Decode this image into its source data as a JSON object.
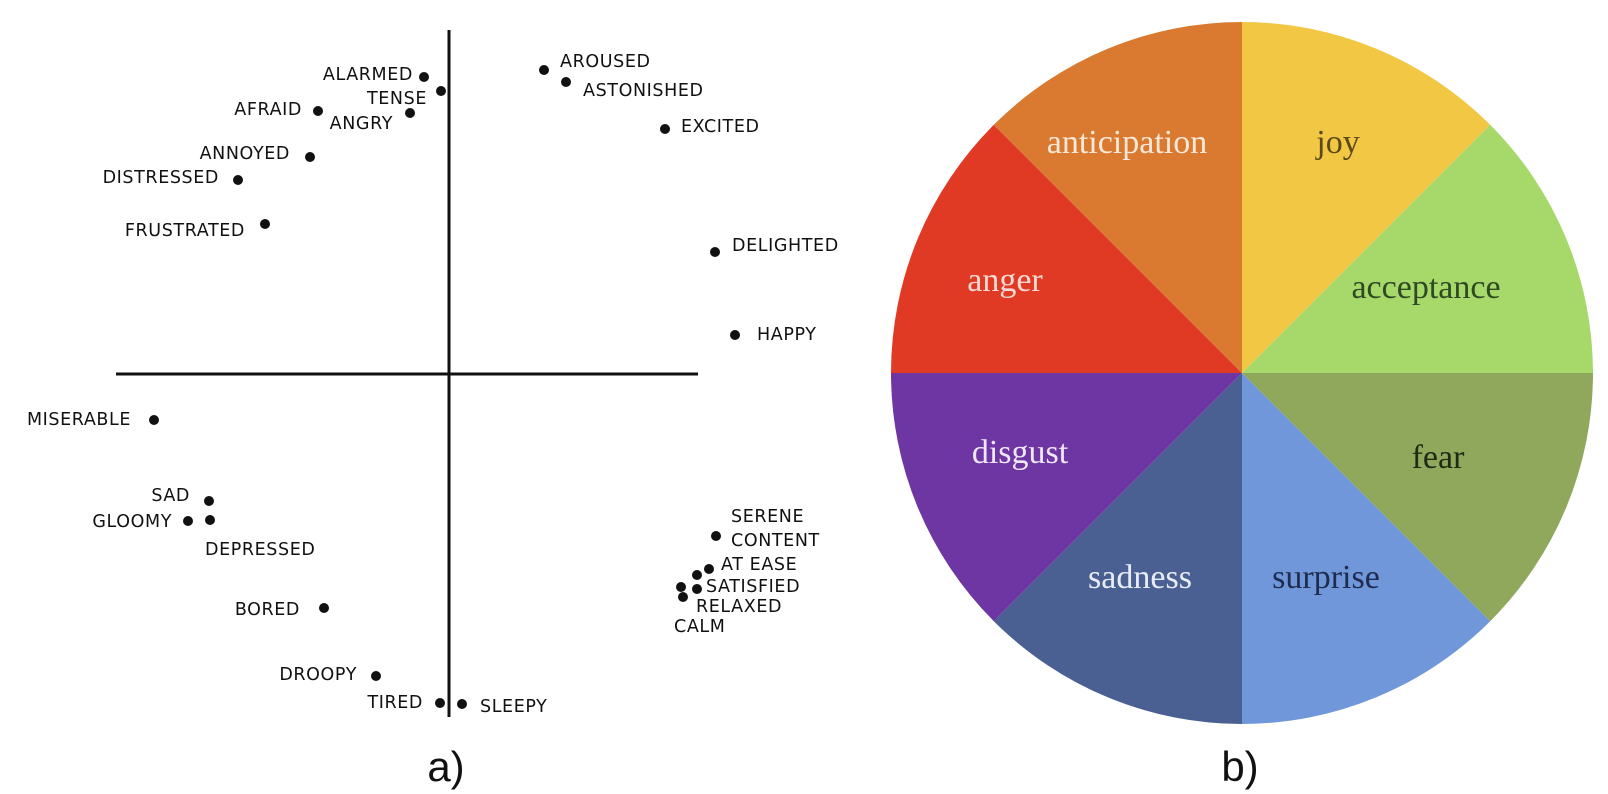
{
  "panels": [
    {
      "id": "a",
      "label": "a)"
    },
    {
      "id": "b",
      "label": "b)"
    }
  ],
  "circumplex": {
    "words": [
      {
        "id": "alarmed",
        "label": "ALARMED"
      },
      {
        "id": "tense",
        "label": "TENSE"
      },
      {
        "id": "afraid",
        "label": "AFRAID"
      },
      {
        "id": "angry",
        "label": "ANGRY"
      },
      {
        "id": "annoyed",
        "label": "ANNOYED"
      },
      {
        "id": "distressed",
        "label": "DISTRESSED"
      },
      {
        "id": "frustrated",
        "label": "FRUSTRATED"
      },
      {
        "id": "aroused",
        "label": "AROUSED"
      },
      {
        "id": "astonished",
        "label": "ASTONISHED"
      },
      {
        "id": "excited",
        "label": "EXCITED"
      },
      {
        "id": "delighted",
        "label": "DELIGHTED"
      },
      {
        "id": "happy",
        "label": "HAPPY"
      },
      {
        "id": "miserable",
        "label": "MISERABLE"
      },
      {
        "id": "sad",
        "label": "SAD"
      },
      {
        "id": "gloomy",
        "label": "GLOOMY"
      },
      {
        "id": "depressed",
        "label": "DEPRESSED"
      },
      {
        "id": "bored",
        "label": "BORED"
      },
      {
        "id": "droopy",
        "label": "DROOPY"
      },
      {
        "id": "tired",
        "label": "TIRED"
      },
      {
        "id": "sleepy",
        "label": "SLEEPY"
      },
      {
        "id": "serene",
        "label": "SERENE"
      },
      {
        "id": "content",
        "label": "CONTENT"
      },
      {
        "id": "at-ease",
        "label": "AT EASE"
      },
      {
        "id": "satisfied",
        "label": "SATISFIED"
      },
      {
        "id": "relaxed",
        "label": "RELAXED"
      },
      {
        "id": "calm",
        "label": "CALM"
      }
    ]
  },
  "wheel": {
    "segments": [
      {
        "id": "joy",
        "label": "joy",
        "color": "#F2C744",
        "text_color": "#5a4a1a"
      },
      {
        "id": "acceptance",
        "label": "acceptance",
        "color": "#A6D86A",
        "text_color": "#2f4a22"
      },
      {
        "id": "fear",
        "label": "fear",
        "color": "#8FA85C",
        "text_color": "#1f2a14"
      },
      {
        "id": "surprise",
        "label": "surprise",
        "color": "#6F97D9",
        "text_color": "#1f2b4f"
      },
      {
        "id": "sadness",
        "label": "sadness",
        "color": "#4A5F92",
        "text_color": "#e8ecf6"
      },
      {
        "id": "disgust",
        "label": "disgust",
        "color": "#6E36A2",
        "text_color": "#efe6f7"
      },
      {
        "id": "anger",
        "label": "anger",
        "color": "#E03A24",
        "text_color": "#f6d9d3"
      },
      {
        "id": "anticipation",
        "label": "anticipation",
        "color": "#D97A30",
        "text_color": "#f7e8d8"
      }
    ]
  }
}
